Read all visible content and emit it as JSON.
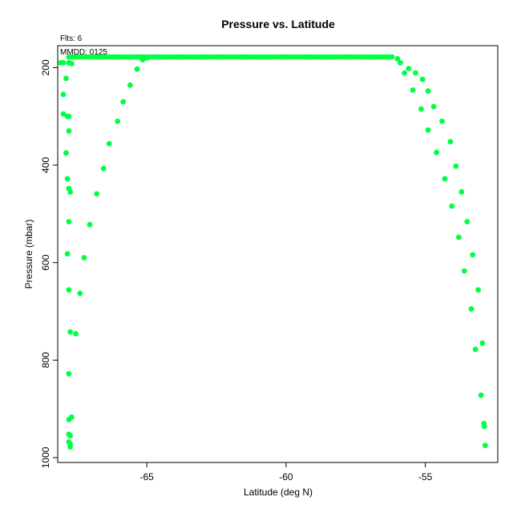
{
  "chart_data": {
    "type": "scatter",
    "title": "Pressure vs. Latitude",
    "subtitle": "Flts: 6",
    "annotation": "MMDD: 0125",
    "xlabel": "Latitude (deg N)",
    "ylabel": "Pressure (mbar)",
    "xlim": [
      -68.2,
      -52.4
    ],
    "ylim": [
      1010,
      155
    ],
    "y_inverted": true,
    "xticks": [
      -65,
      -60,
      -55
    ],
    "yticks": [
      200,
      400,
      600,
      800,
      1000
    ],
    "grid": false,
    "point_color": "#00ff44",
    "series": [
      {
        "points": [
          [
            -68.1,
            190
          ],
          [
            -68.0,
            190
          ],
          [
            -67.8,
            190
          ],
          [
            -67.7,
            192
          ],
          [
            -68.0,
            255
          ],
          [
            -67.9,
            222
          ],
          [
            -68.0,
            295
          ],
          [
            -67.85,
            300
          ],
          [
            -67.8,
            300
          ],
          [
            -67.8,
            330
          ],
          [
            -67.9,
            375
          ],
          [
            -67.85,
            428
          ],
          [
            -67.8,
            448
          ],
          [
            -67.75,
            455
          ],
          [
            -67.8,
            516
          ],
          [
            -67.85,
            582
          ],
          [
            -67.8,
            656
          ],
          [
            -67.75,
            742
          ],
          [
            -67.8,
            828
          ],
          [
            -67.8,
            922
          ],
          [
            -67.7,
            917
          ],
          [
            -67.8,
            952
          ],
          [
            -67.75,
            955
          ],
          [
            -67.8,
            968
          ],
          [
            -67.75,
            972
          ],
          [
            -67.75,
            978
          ],
          [
            -67.55,
            746
          ],
          [
            -67.4,
            663
          ],
          [
            -67.25,
            590
          ],
          [
            -67.05,
            522
          ],
          [
            -66.8,
            459
          ],
          [
            -66.55,
            407
          ],
          [
            -66.35,
            356
          ],
          [
            -66.05,
            310
          ],
          [
            -65.85,
            270
          ],
          [
            -65.6,
            236
          ],
          [
            -65.35,
            203
          ],
          [
            -65.15,
            184
          ],
          [
            -65.0,
            180
          ],
          [
            -56.0,
            182
          ],
          [
            -55.9,
            190
          ],
          [
            -55.75,
            211
          ],
          [
            -55.6,
            202
          ],
          [
            -55.45,
            246
          ],
          [
            -55.35,
            211
          ],
          [
            -55.15,
            285
          ],
          [
            -55.1,
            224
          ],
          [
            -54.9,
            328
          ],
          [
            -54.9,
            248
          ],
          [
            -54.7,
            280
          ],
          [
            -54.6,
            374
          ],
          [
            -54.4,
            310
          ],
          [
            -54.3,
            428
          ],
          [
            -54.1,
            352
          ],
          [
            -54.05,
            484
          ],
          [
            -53.9,
            402
          ],
          [
            -53.8,
            548
          ],
          [
            -53.7,
            455
          ],
          [
            -53.6,
            617
          ],
          [
            -53.5,
            516
          ],
          [
            -53.35,
            695
          ],
          [
            -53.3,
            584
          ],
          [
            -53.2,
            778
          ],
          [
            -53.1,
            656
          ],
          [
            -53.0,
            872
          ],
          [
            -52.95,
            765
          ],
          [
            -52.9,
            930
          ],
          [
            -52.88,
            936
          ],
          [
            -52.85,
            975
          ]
        ],
        "plateau": {
          "y": 178,
          "x_start": -67.8,
          "x_end": -56.2,
          "count": 97
        }
      }
    ]
  }
}
